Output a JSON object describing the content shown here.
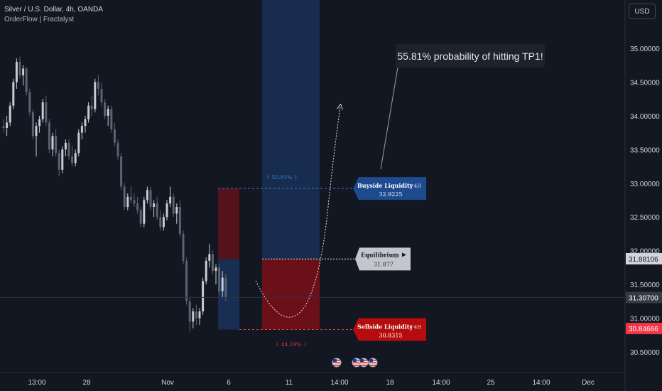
{
  "header": {
    "symbol_line": "Silver / U.S. Dollar, 4h, OANDA",
    "indicator_line": "OrderFlow | Fractalyst",
    "currency": "USD"
  },
  "colors": {
    "background": "#131722",
    "bull_candle": "#c8cbd2",
    "bear_candle": "#5d6270",
    "buyside": "#1e4b8f",
    "sellside": "#b50d0d",
    "equilibrium": "#c3c6cc",
    "current_price": "#2a2e39",
    "last_price": "#f23645"
  },
  "annotations": {
    "callout": "55.81% probability of hitting TP1!",
    "buyside_name": "Buyside Liquidity",
    "buyside_tf": "4H",
    "buyside_value": "32.9225",
    "equilibrium_name": "Equilibrium",
    "equilibrium_value": "31.877",
    "equilibrium_icon": "play-icon",
    "sellside_name": "Sellside Liquidity",
    "sellside_tf": "4H",
    "sellside_value": "30.8315",
    "pct_up": "↑ 55.81% ↑",
    "pct_down": "↓ 44.19% ↓"
  },
  "chart_data": {
    "type": "candlestick",
    "title": "Silver / U.S. Dollar, 4h, OANDA",
    "ylim": [
      30.2,
      35.45
    ],
    "y_ticks": [
      "35.00000",
      "34.50000",
      "34.00000",
      "33.50000",
      "33.00000",
      "32.50000",
      "32.00000",
      "31.50000",
      "31.00000",
      "30.50000"
    ],
    "y_tick_values": [
      35.0,
      34.5,
      34.0,
      33.5,
      33.0,
      32.5,
      32.0,
      31.5,
      31.0,
      30.5
    ],
    "x_ticks": [
      "13:00",
      "28",
      "Nov",
      "6",
      "11",
      "14:00",
      "18",
      "14:00",
      "25",
      "14:00",
      "Dec"
    ],
    "current_price_label": "31.88106",
    "crosshair_price_label": "31.30700",
    "last_price_label": "30.84666",
    "current_price": 31.88106,
    "crosshair_price": 31.307,
    "last_price": 30.84666,
    "levels": {
      "buyside": 32.9225,
      "equilibrium": 31.877,
      "sellside": 30.8315
    },
    "candles_ohlc": [
      [
        33.85,
        33.95,
        33.75,
        33.82
      ],
      [
        33.82,
        34.0,
        33.7,
        33.9
      ],
      [
        33.9,
        34.2,
        33.85,
        34.15
      ],
      [
        34.15,
        34.55,
        34.1,
        34.5
      ],
      [
        34.5,
        34.85,
        34.4,
        34.8
      ],
      [
        34.8,
        34.88,
        34.55,
        34.6
      ],
      [
        34.6,
        34.75,
        34.45,
        34.7
      ],
      [
        34.7,
        34.72,
        34.3,
        34.35
      ],
      [
        34.35,
        34.4,
        34.0,
        34.05
      ],
      [
        34.05,
        34.1,
        33.65,
        33.7
      ],
      [
        33.7,
        33.9,
        33.4,
        33.85
      ],
      [
        33.85,
        34.0,
        33.75,
        33.95
      ],
      [
        33.95,
        34.25,
        33.9,
        34.2
      ],
      [
        34.2,
        34.3,
        33.85,
        33.9
      ],
      [
        33.9,
        33.95,
        33.45,
        33.5
      ],
      [
        33.5,
        33.75,
        33.4,
        33.7
      ],
      [
        33.7,
        33.8,
        33.4,
        33.45
      ],
      [
        33.45,
        33.5,
        33.1,
        33.2
      ],
      [
        33.2,
        33.55,
        33.15,
        33.5
      ],
      [
        33.5,
        33.65,
        33.4,
        33.6
      ],
      [
        33.6,
        33.65,
        33.35,
        33.4
      ],
      [
        33.4,
        33.55,
        33.25,
        33.3
      ],
      [
        33.3,
        33.5,
        33.25,
        33.45
      ],
      [
        33.45,
        33.8,
        33.4,
        33.75
      ],
      [
        33.75,
        33.9,
        33.65,
        33.85
      ],
      [
        33.85,
        34.0,
        33.75,
        33.95
      ],
      [
        33.95,
        34.2,
        33.9,
        34.15
      ],
      [
        34.15,
        34.3,
        34.0,
        34.1
      ],
      [
        34.1,
        34.55,
        34.05,
        34.5
      ],
      [
        34.5,
        34.6,
        34.3,
        34.4
      ],
      [
        34.4,
        34.5,
        34.15,
        34.2
      ],
      [
        34.2,
        34.25,
        33.95,
        34.0
      ],
      [
        34.0,
        34.15,
        33.85,
        34.1
      ],
      [
        34.1,
        34.15,
        33.75,
        33.8
      ],
      [
        33.8,
        33.9,
        33.55,
        33.6
      ],
      [
        33.6,
        33.65,
        33.35,
        33.4
      ],
      [
        33.4,
        33.45,
        32.9,
        32.95
      ],
      [
        32.95,
        33.0,
        32.6,
        32.65
      ],
      [
        32.65,
        32.85,
        32.6,
        32.8
      ],
      [
        32.8,
        32.95,
        32.7,
        32.75
      ],
      [
        32.75,
        32.85,
        32.65,
        32.7
      ],
      [
        32.7,
        32.8,
        32.55,
        32.6
      ],
      [
        32.6,
        32.65,
        32.35,
        32.4
      ],
      [
        32.4,
        32.8,
        32.35,
        32.75
      ],
      [
        32.75,
        32.95,
        32.7,
        32.9
      ],
      [
        32.9,
        32.95,
        32.6,
        32.65
      ],
      [
        32.65,
        32.75,
        32.5,
        32.7
      ],
      [
        32.7,
        32.8,
        32.45,
        32.5
      ],
      [
        32.5,
        32.6,
        32.3,
        32.35
      ],
      [
        32.35,
        32.55,
        32.3,
        32.5
      ],
      [
        32.5,
        32.75,
        32.45,
        32.7
      ],
      [
        32.7,
        32.95,
        32.65,
        32.8
      ],
      [
        32.8,
        32.85,
        32.5,
        32.55
      ],
      [
        32.55,
        32.7,
        32.4,
        32.65
      ],
      [
        32.65,
        32.75,
        32.2,
        32.25
      ],
      [
        32.25,
        32.3,
        31.8,
        31.85
      ],
      [
        31.85,
        31.9,
        31.2,
        31.25
      ],
      [
        31.25,
        31.3,
        30.8,
        30.95
      ],
      [
        30.95,
        31.15,
        30.85,
        31.1
      ],
      [
        31.1,
        31.2,
        30.9,
        31.0
      ],
      [
        31.0,
        31.15,
        30.9,
        31.1
      ],
      [
        31.1,
        31.6,
        31.05,
        31.55
      ],
      [
        31.55,
        31.9,
        31.5,
        31.85
      ],
      [
        31.85,
        32.1,
        31.75,
        31.95
      ],
      [
        31.95,
        32.0,
        31.65,
        31.7
      ],
      [
        31.7,
        31.8,
        31.5,
        31.75
      ],
      [
        31.75,
        31.8,
        31.35,
        31.4
      ],
      [
        31.4,
        31.7,
        31.3,
        31.6
      ],
      [
        31.6,
        31.65,
        31.25,
        31.3
      ]
    ]
  }
}
